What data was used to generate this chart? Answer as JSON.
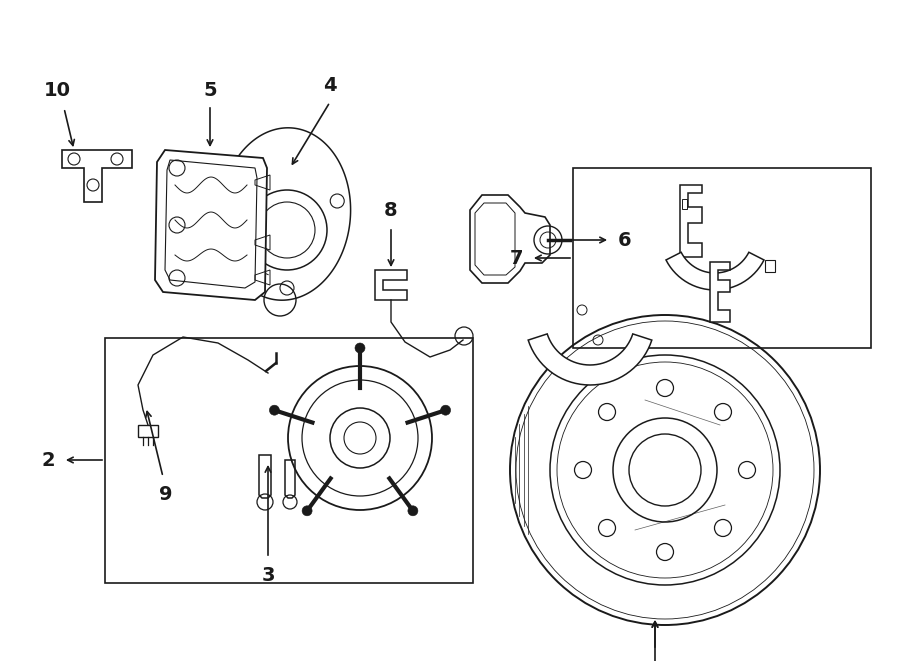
{
  "bg": "#ffffff",
  "lc": "#1a1a1a",
  "lw": 1.1,
  "fw": 9.0,
  "fh": 6.61,
  "dpi": 100,
  "fs": 14
}
